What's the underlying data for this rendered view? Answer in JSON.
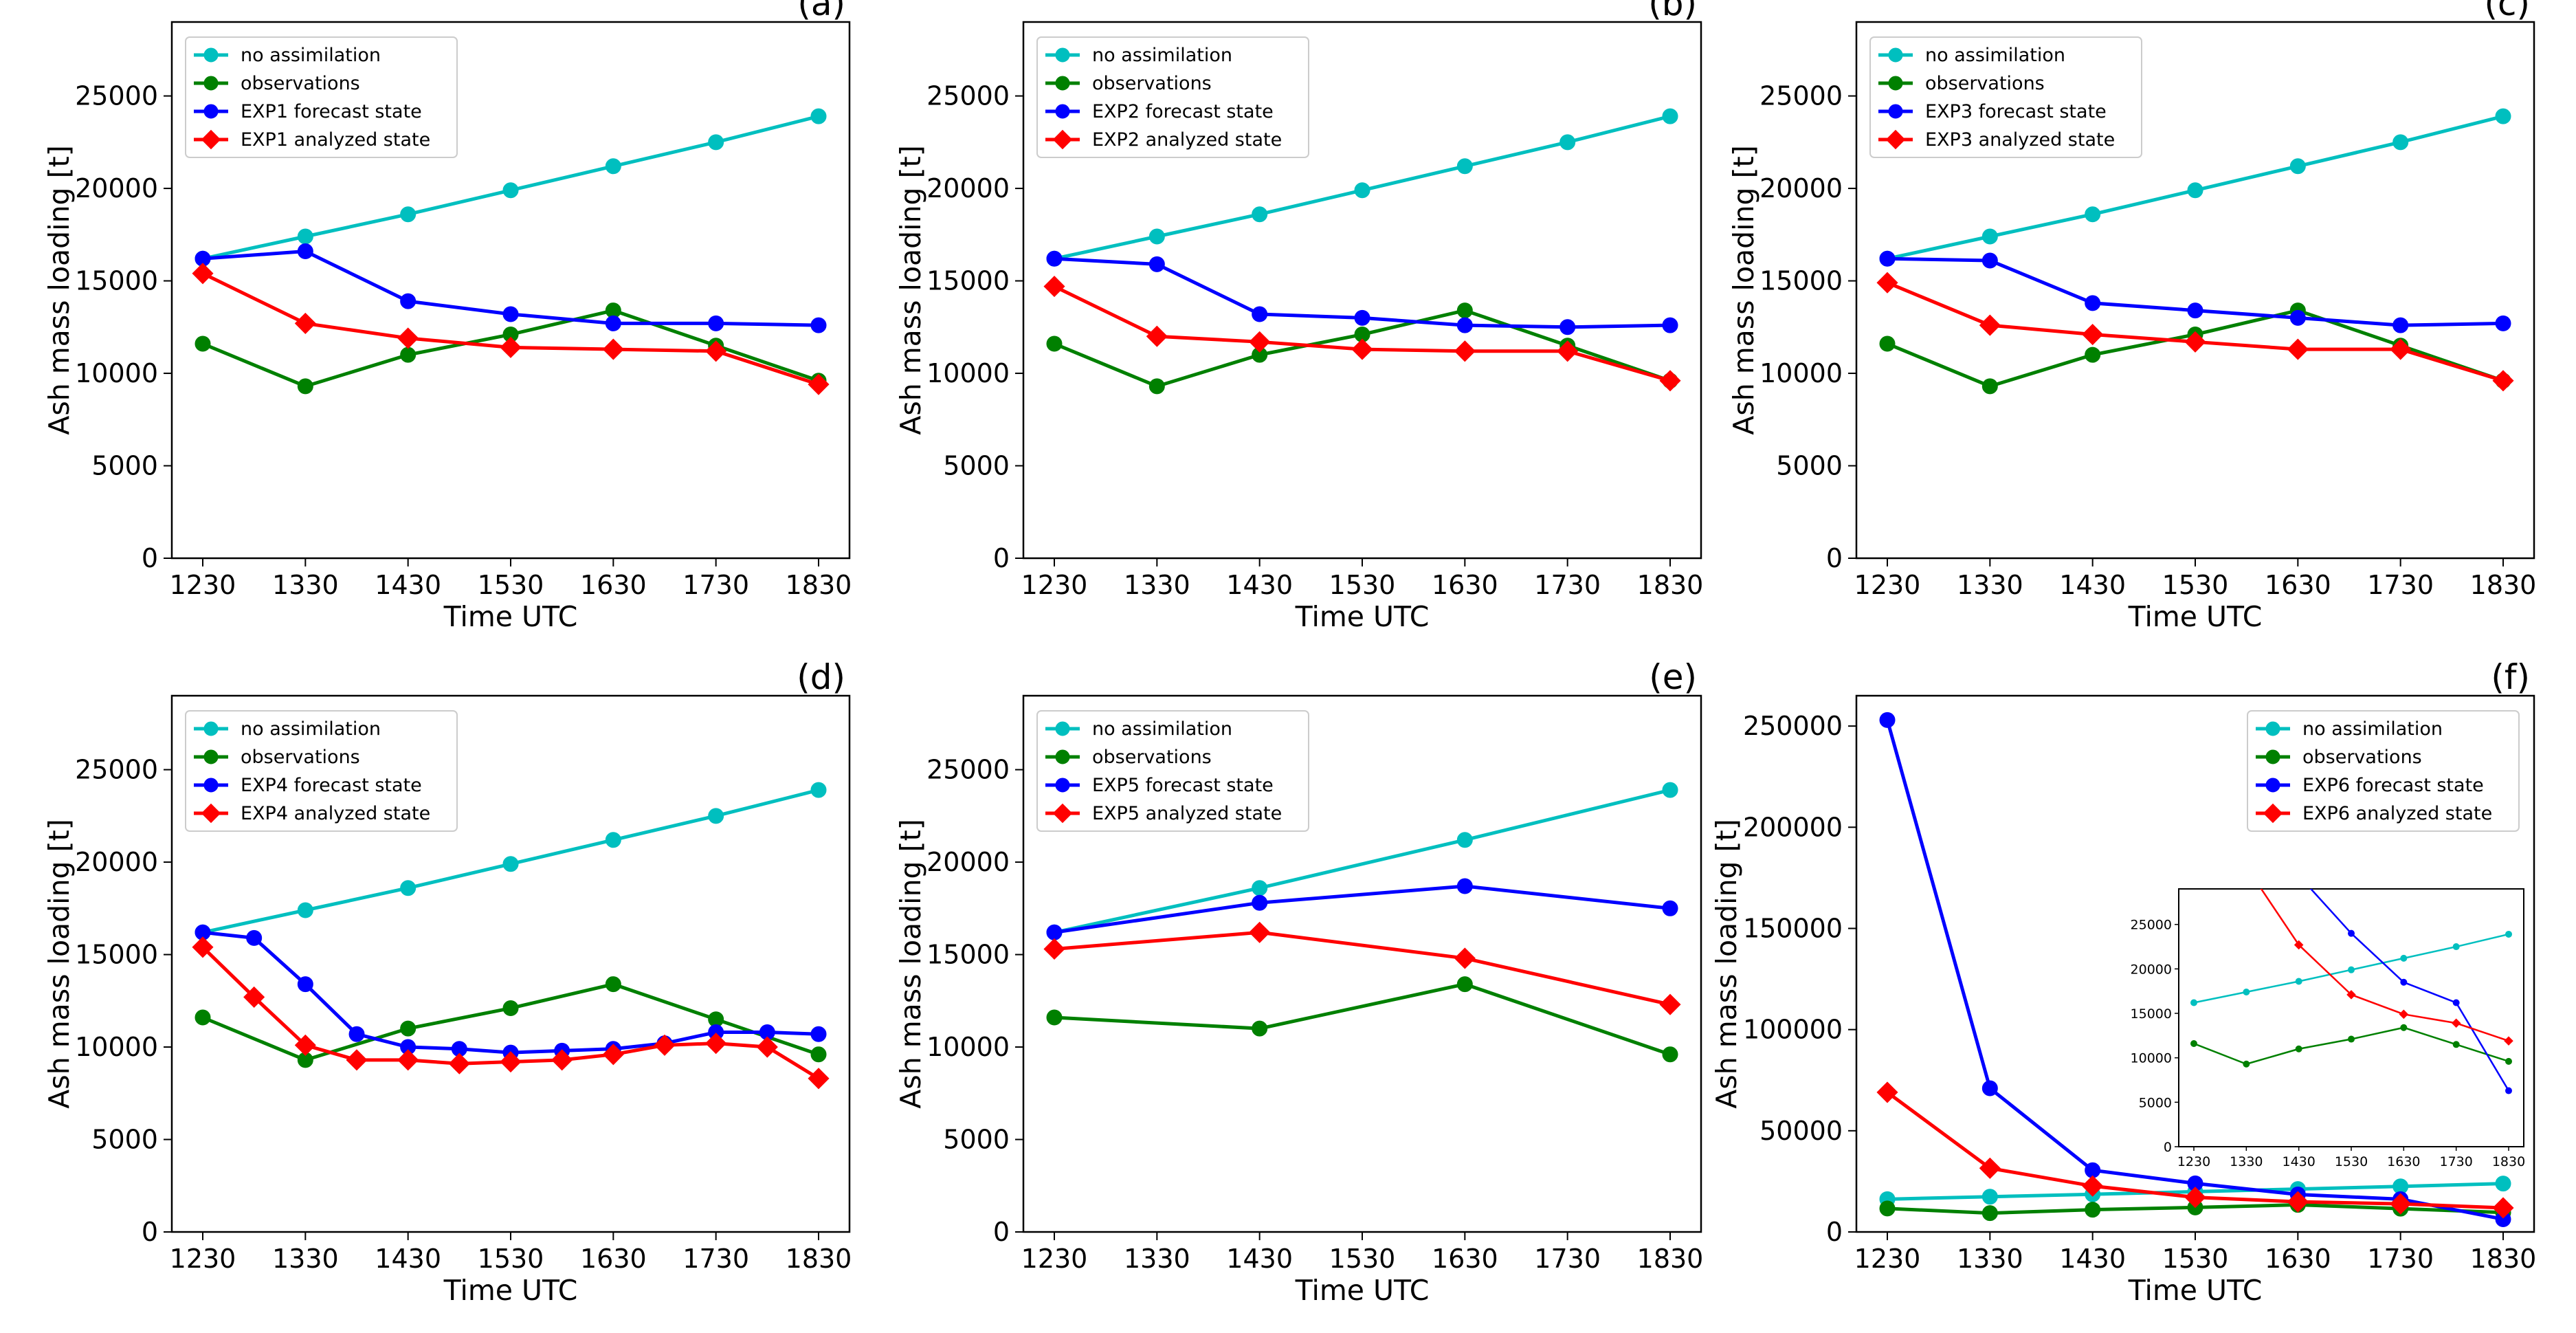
{
  "colors": {
    "no_assimilation": "#00bfbf",
    "observations": "#008000",
    "forecast": "#0000ff",
    "analyzed": "#ff0000"
  },
  "chart_data": [
    {
      "type": "line",
      "panel": "(a)",
      "xlabel": "Time UTC",
      "ylabel": "Ash mass loading [t]",
      "xlim": [
        1230,
        1830
      ],
      "ylim": [
        0,
        29000
      ],
      "xticks": [
        1230,
        1330,
        1430,
        1530,
        1630,
        1730,
        1830
      ],
      "xtick_labels": [
        "1230",
        "1330",
        "1430",
        "1530",
        "1630",
        "1730",
        "1830"
      ],
      "yticks": [
        0,
        5000,
        10000,
        15000,
        20000,
        25000
      ],
      "ytick_labels": [
        "0",
        "5000",
        "10000",
        "15000",
        "20000",
        "25000"
      ],
      "legend_position": "upper-left",
      "series": [
        {
          "name": "no assimilation",
          "color_key": "no_assimilation",
          "marker": "circle",
          "x": [
            1230,
            1330,
            1430,
            1530,
            1630,
            1730,
            1830
          ],
          "values": [
            16200,
            17400,
            18600,
            19900,
            21200,
            22500,
            23900
          ]
        },
        {
          "name": "observations",
          "color_key": "observations",
          "marker": "circle",
          "x": [
            1230,
            1330,
            1430,
            1530,
            1630,
            1730,
            1830
          ],
          "values": [
            11600,
            9300,
            11000,
            12100,
            13400,
            11500,
            9600
          ]
        },
        {
          "name": "EXP1 forecast state",
          "color_key": "forecast",
          "marker": "circle",
          "x": [
            1230,
            1330,
            1430,
            1530,
            1630,
            1730,
            1830
          ],
          "values": [
            16200,
            16600,
            13900,
            13200,
            12700,
            12700,
            12600
          ]
        },
        {
          "name": "EXP1 analyzed state",
          "color_key": "analyzed",
          "marker": "diamond",
          "x": [
            1230,
            1330,
            1430,
            1530,
            1630,
            1730,
            1830
          ],
          "values": [
            15400,
            12700,
            11900,
            11400,
            11300,
            11200,
            9400
          ]
        }
      ]
    },
    {
      "type": "line",
      "panel": "(b)",
      "xlabel": "Time UTC",
      "ylabel": "Ash mass loading [t]",
      "xlim": [
        1230,
        1830
      ],
      "ylim": [
        0,
        29000
      ],
      "xticks": [
        1230,
        1330,
        1430,
        1530,
        1630,
        1730,
        1830
      ],
      "xtick_labels": [
        "1230",
        "1330",
        "1430",
        "1530",
        "1630",
        "1730",
        "1830"
      ],
      "yticks": [
        0,
        5000,
        10000,
        15000,
        20000,
        25000
      ],
      "ytick_labels": [
        "0",
        "5000",
        "10000",
        "15000",
        "20000",
        "25000"
      ],
      "legend_position": "upper-left",
      "series": [
        {
          "name": "no assimilation",
          "color_key": "no_assimilation",
          "marker": "circle",
          "x": [
            1230,
            1330,
            1430,
            1530,
            1630,
            1730,
            1830
          ],
          "values": [
            16200,
            17400,
            18600,
            19900,
            21200,
            22500,
            23900
          ]
        },
        {
          "name": "observations",
          "color_key": "observations",
          "marker": "circle",
          "x": [
            1230,
            1330,
            1430,
            1530,
            1630,
            1730,
            1830
          ],
          "values": [
            11600,
            9300,
            11000,
            12100,
            13400,
            11500,
            9600
          ]
        },
        {
          "name": "EXP2 forecast state",
          "color_key": "forecast",
          "marker": "circle",
          "x": [
            1230,
            1330,
            1430,
            1530,
            1630,
            1730,
            1830
          ],
          "values": [
            16200,
            15900,
            13200,
            13000,
            12600,
            12500,
            12600
          ]
        },
        {
          "name": "EXP2 analyzed state",
          "color_key": "analyzed",
          "marker": "diamond",
          "x": [
            1230,
            1330,
            1430,
            1530,
            1630,
            1730,
            1830
          ],
          "values": [
            14700,
            12000,
            11700,
            11300,
            11200,
            11200,
            9600
          ]
        }
      ]
    },
    {
      "type": "line",
      "panel": "(c)",
      "xlabel": "Time UTC",
      "ylabel": "Ash mass loading [t]",
      "xlim": [
        1230,
        1830
      ],
      "ylim": [
        0,
        29000
      ],
      "xticks": [
        1230,
        1330,
        1430,
        1530,
        1630,
        1730,
        1830
      ],
      "xtick_labels": [
        "1230",
        "1330",
        "1430",
        "1530",
        "1630",
        "1730",
        "1830"
      ],
      "yticks": [
        0,
        5000,
        10000,
        15000,
        20000,
        25000
      ],
      "ytick_labels": [
        "0",
        "5000",
        "10000",
        "15000",
        "20000",
        "25000"
      ],
      "legend_position": "upper-left",
      "series": [
        {
          "name": "no assimilation",
          "color_key": "no_assimilation",
          "marker": "circle",
          "x": [
            1230,
            1330,
            1430,
            1530,
            1630,
            1730,
            1830
          ],
          "values": [
            16200,
            17400,
            18600,
            19900,
            21200,
            22500,
            23900
          ]
        },
        {
          "name": "observations",
          "color_key": "observations",
          "marker": "circle",
          "x": [
            1230,
            1330,
            1430,
            1530,
            1630,
            1730,
            1830
          ],
          "values": [
            11600,
            9300,
            11000,
            12100,
            13400,
            11500,
            9600
          ]
        },
        {
          "name": "EXP3 forecast state",
          "color_key": "forecast",
          "marker": "circle",
          "x": [
            1230,
            1330,
            1430,
            1530,
            1630,
            1730,
            1830
          ],
          "values": [
            16200,
            16100,
            13800,
            13400,
            13000,
            12600,
            12700
          ]
        },
        {
          "name": "EXP3 analyzed state",
          "color_key": "analyzed",
          "marker": "diamond",
          "x": [
            1230,
            1330,
            1430,
            1530,
            1630,
            1730,
            1830
          ],
          "values": [
            14900,
            12600,
            12100,
            11700,
            11300,
            11300,
            9600
          ]
        }
      ]
    },
    {
      "type": "line",
      "panel": "(d)",
      "xlabel": "Time UTC",
      "ylabel": "Ash mass loading [t]",
      "xlim": [
        1230,
        1830
      ],
      "ylim": [
        0,
        29000
      ],
      "xticks": [
        1230,
        1330,
        1430,
        1530,
        1630,
        1730,
        1830
      ],
      "xtick_labels": [
        "1230",
        "1330",
        "1430",
        "1530",
        "1630",
        "1730",
        "1830"
      ],
      "yticks": [
        0,
        5000,
        10000,
        15000,
        20000,
        25000
      ],
      "ytick_labels": [
        "0",
        "5000",
        "10000",
        "15000",
        "20000",
        "25000"
      ],
      "legend_position": "upper-left",
      "series": [
        {
          "name": "no assimilation",
          "color_key": "no_assimilation",
          "marker": "circle",
          "x": [
            1230,
            1330,
            1430,
            1530,
            1630,
            1730,
            1830
          ],
          "values": [
            16200,
            17400,
            18600,
            19900,
            21200,
            22500,
            23900
          ]
        },
        {
          "name": "observations",
          "color_key": "observations",
          "marker": "circle",
          "x": [
            1230,
            1330,
            1430,
            1530,
            1630,
            1730,
            1830
          ],
          "values": [
            11600,
            9300,
            11000,
            12100,
            13400,
            11500,
            9600
          ]
        },
        {
          "name": "EXP4 forecast state",
          "color_key": "forecast",
          "marker": "circle",
          "x": [
            1230,
            1280,
            1330,
            1380,
            1430,
            1480,
            1530,
            1580,
            1630,
            1680,
            1730,
            1780,
            1830
          ],
          "values": [
            16200,
            15900,
            13400,
            10700,
            10000,
            9900,
            9700,
            9800,
            9900,
            10200,
            10800,
            10800,
            10700
          ]
        },
        {
          "name": "EXP4 analyzed state",
          "color_key": "analyzed",
          "marker": "diamond",
          "x": [
            1230,
            1280,
            1330,
            1380,
            1430,
            1480,
            1530,
            1580,
            1630,
            1680,
            1730,
            1780,
            1830
          ],
          "values": [
            15400,
            12700,
            10100,
            9300,
            9300,
            9100,
            9200,
            9300,
            9600,
            10100,
            10200,
            10000,
            8300
          ]
        }
      ]
    },
    {
      "type": "line",
      "panel": "(e)",
      "xlabel": "Time UTC",
      "ylabel": "Ash mass loading [t]",
      "xlim": [
        1230,
        1830
      ],
      "ylim": [
        0,
        29000
      ],
      "xticks": [
        1230,
        1330,
        1430,
        1530,
        1630,
        1730,
        1830
      ],
      "xtick_labels": [
        "1230",
        "1330",
        "1430",
        "1530",
        "1630",
        "1730",
        "1830"
      ],
      "yticks": [
        0,
        5000,
        10000,
        15000,
        20000,
        25000
      ],
      "ytick_labels": [
        "0",
        "5000",
        "10000",
        "15000",
        "20000",
        "25000"
      ],
      "legend_position": "upper-left",
      "series": [
        {
          "name": "no assimilation",
          "color_key": "no_assimilation",
          "marker": "circle",
          "x": [
            1230,
            1430,
            1630,
            1830
          ],
          "values": [
            16200,
            18600,
            21200,
            23900
          ]
        },
        {
          "name": "observations",
          "color_key": "observations",
          "marker": "circle",
          "x": [
            1230,
            1430,
            1630,
            1830
          ],
          "values": [
            11600,
            11000,
            13400,
            9600
          ]
        },
        {
          "name": "EXP5 forecast state",
          "color_key": "forecast",
          "marker": "circle",
          "x": [
            1230,
            1430,
            1630,
            1830
          ],
          "values": [
            16200,
            17800,
            18700,
            17500
          ]
        },
        {
          "name": "EXP5 analyzed state",
          "color_key": "analyzed",
          "marker": "diamond",
          "x": [
            1230,
            1430,
            1630,
            1830
          ],
          "values": [
            15300,
            16200,
            14800,
            12300
          ]
        }
      ]
    },
    {
      "type": "line",
      "panel": "(f)",
      "xlabel": "Time UTC",
      "ylabel": "Ash mass loading [t]",
      "xlim": [
        1230,
        1830
      ],
      "ylim": [
        0,
        265000
      ],
      "xticks": [
        1230,
        1330,
        1430,
        1530,
        1630,
        1730,
        1830
      ],
      "xtick_labels": [
        "1230",
        "1330",
        "1430",
        "1530",
        "1630",
        "1730",
        "1830"
      ],
      "yticks": [
        0,
        50000,
        100000,
        150000,
        200000,
        250000
      ],
      "ytick_labels": [
        "0",
        "50000",
        "100000",
        "150000",
        "200000",
        "250000"
      ],
      "legend_position": "upper-right",
      "series": [
        {
          "name": "no assimilation",
          "color_key": "no_assimilation",
          "marker": "circle",
          "x": [
            1230,
            1330,
            1430,
            1530,
            1630,
            1730,
            1830
          ],
          "values": [
            16200,
            17400,
            18600,
            19900,
            21200,
            22500,
            23900
          ]
        },
        {
          "name": "observations",
          "color_key": "observations",
          "marker": "circle",
          "x": [
            1230,
            1330,
            1430,
            1530,
            1630,
            1730,
            1830
          ],
          "values": [
            11600,
            9300,
            11000,
            12100,
            13400,
            11500,
            9600
          ]
        },
        {
          "name": "EXP6 forecast state",
          "color_key": "forecast",
          "marker": "circle",
          "x": [
            1230,
            1330,
            1430,
            1530,
            1630,
            1730,
            1830
          ],
          "values": [
            253000,
            71000,
            30500,
            24000,
            18500,
            16200,
            6300
          ]
        },
        {
          "name": "EXP6 analyzed state",
          "color_key": "analyzed",
          "marker": "diamond",
          "x": [
            1230,
            1330,
            1430,
            1530,
            1630,
            1730,
            1830
          ],
          "values": [
            69000,
            31500,
            22700,
            17100,
            14900,
            13900,
            11900
          ]
        }
      ],
      "inset": {
        "xlim": [
          1230,
          1830
        ],
        "ylim": [
          0,
          29000
        ],
        "xticks": [
          1230,
          1330,
          1430,
          1530,
          1630,
          1730,
          1830
        ],
        "xtick_labels": [
          "1230",
          "1330",
          "1430",
          "1530",
          "1630",
          "1730",
          "1830"
        ],
        "yticks": [
          0,
          5000,
          10000,
          15000,
          20000,
          25000
        ],
        "ytick_labels": [
          "0",
          "5000",
          "10000",
          "15000",
          "20000",
          "25000"
        ]
      }
    }
  ]
}
